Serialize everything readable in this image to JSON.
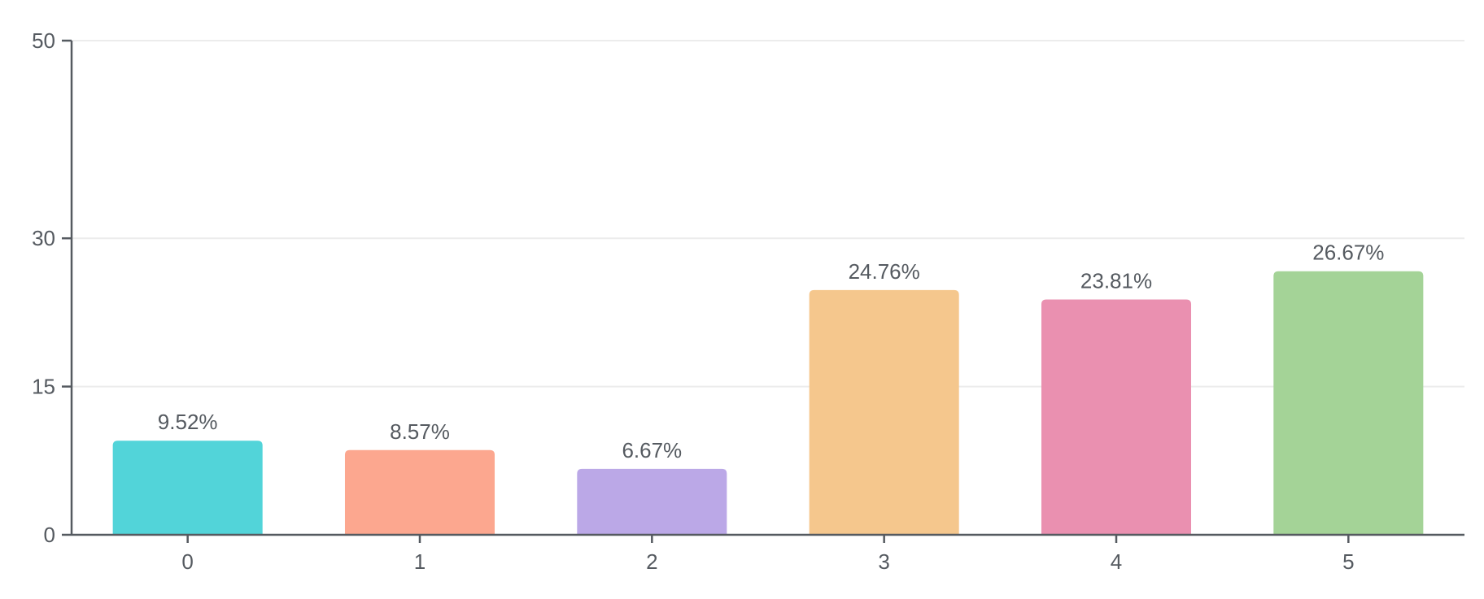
{
  "chart_data": {
    "type": "bar",
    "title": "",
    "xlabel": "",
    "ylabel": "",
    "categories": [
      "0",
      "1",
      "2",
      "3",
      "4",
      "5"
    ],
    "values": [
      9.52,
      8.57,
      6.67,
      24.76,
      23.81,
      26.67
    ],
    "data_labels": [
      "9.52%",
      "8.57%",
      "6.67%",
      "24.76%",
      "23.81%",
      "26.67%"
    ],
    "ylim": [
      0,
      50
    ],
    "yticks": [
      0,
      15,
      30,
      50
    ],
    "ytick_labels": [
      "0",
      "15",
      "30",
      "50"
    ],
    "grid": true,
    "legend": "none",
    "colors": [
      "#52d4d9",
      "#fca78f",
      "#bba8e7",
      "#f5c78d",
      "#ea90b0",
      "#a4d397"
    ]
  }
}
